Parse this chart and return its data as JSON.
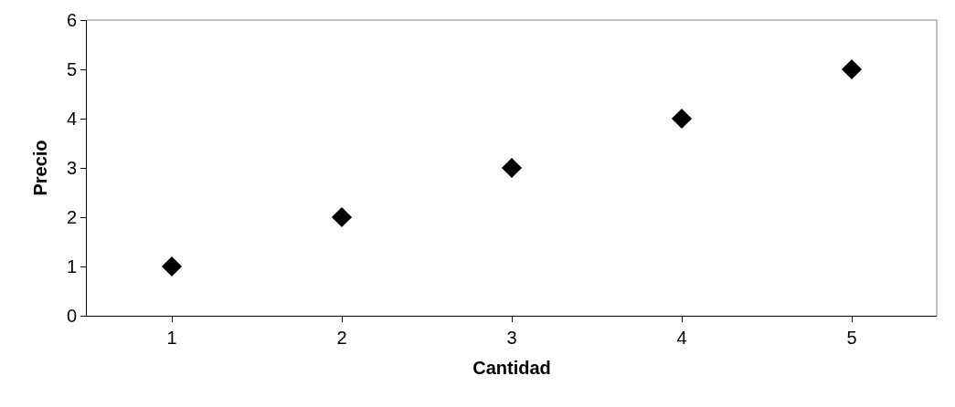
{
  "chart_data": {
    "type": "scatter",
    "xlabel": "Cantidad",
    "ylabel": "Precio",
    "categories": [
      "1",
      "2",
      "3",
      "4",
      "5"
    ],
    "series": [
      {
        "color": "#000000",
        "values": [
          1,
          2,
          3,
          4,
          5
        ]
      }
    ],
    "ylim": [
      0,
      6
    ],
    "yticks": [
      0,
      1,
      2,
      3,
      4,
      5,
      6
    ],
    "marker": "diamond"
  }
}
